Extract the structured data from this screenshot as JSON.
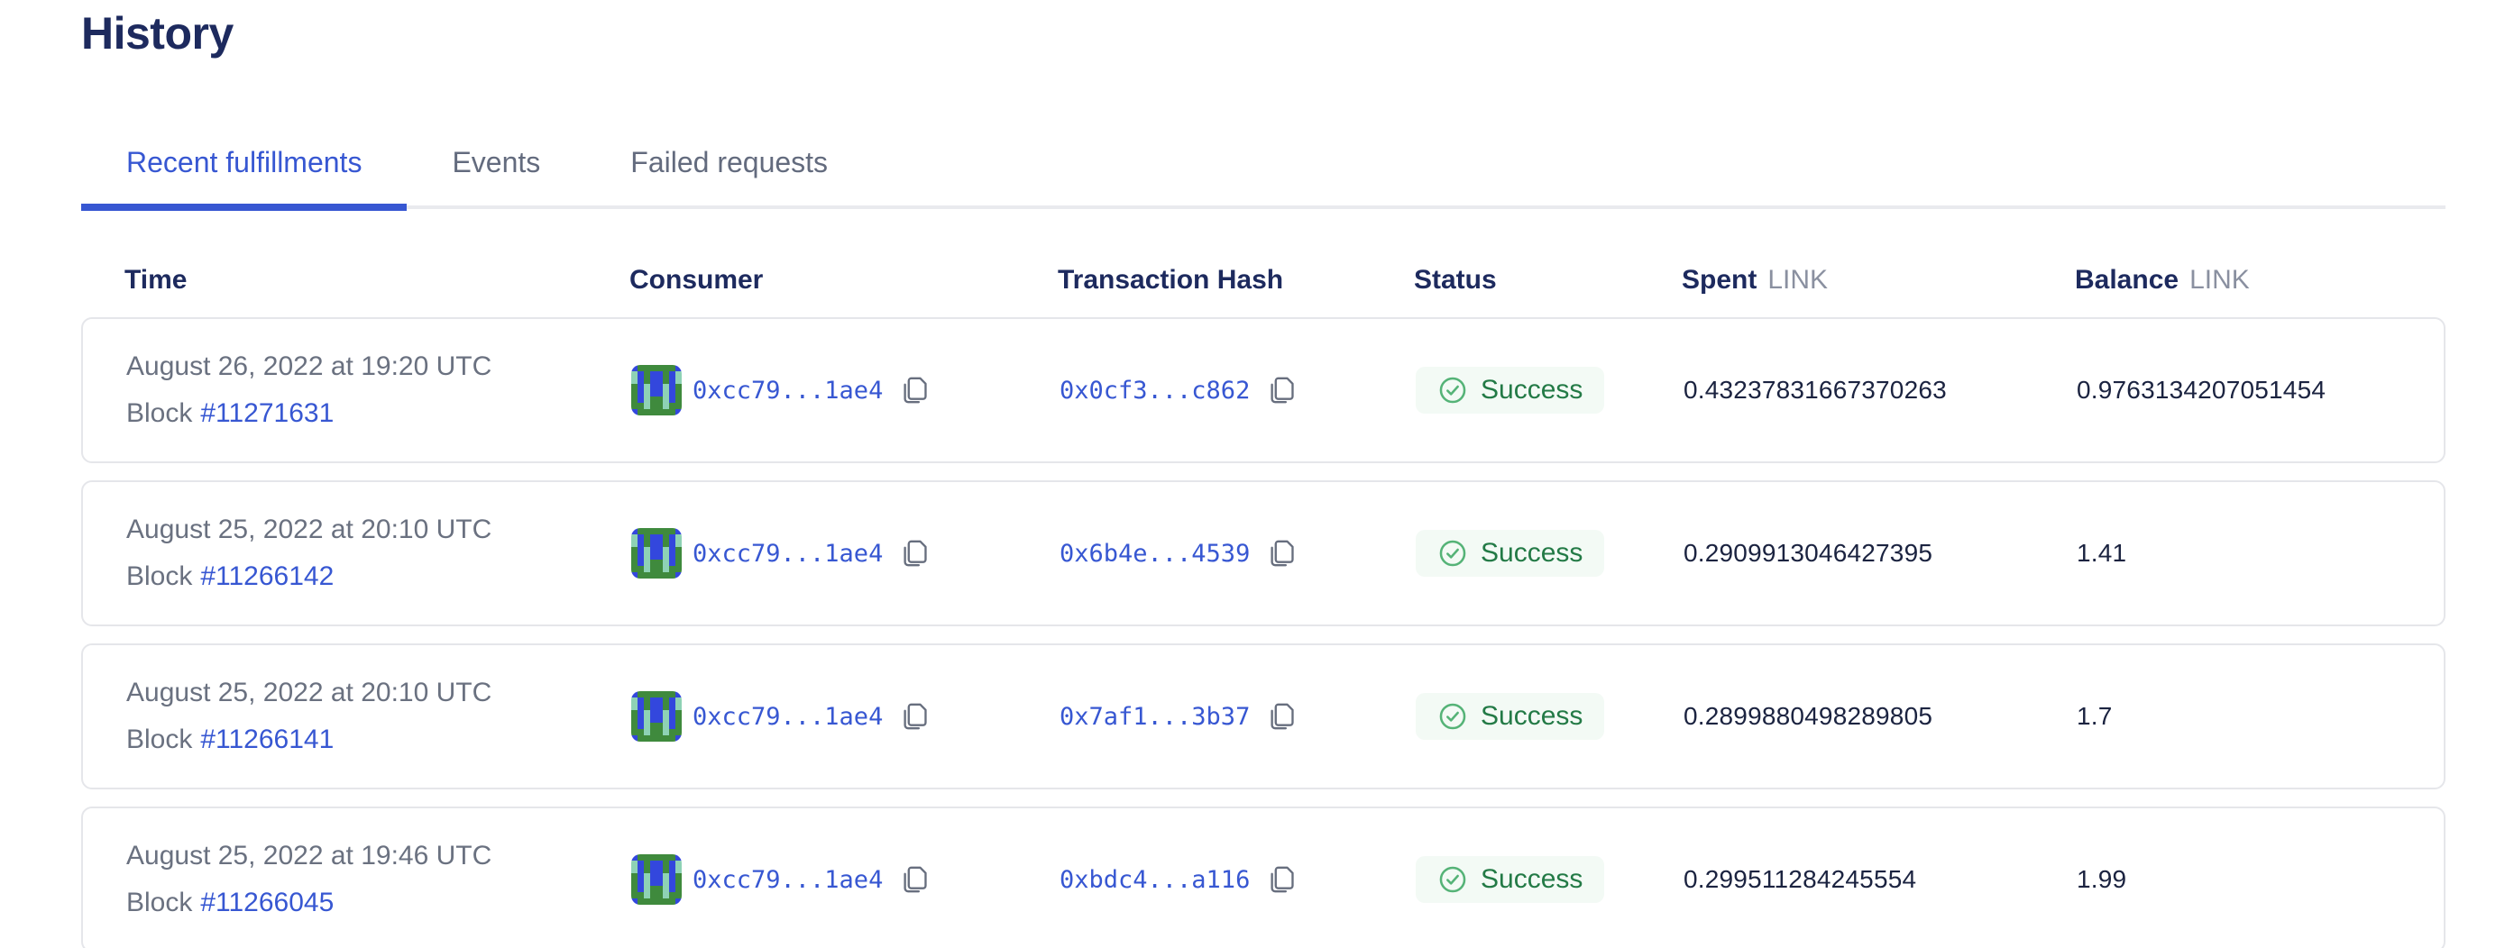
{
  "page": {
    "title": "History"
  },
  "tabs": [
    {
      "label": "Recent fulfillments",
      "active": true
    },
    {
      "label": "Events",
      "active": false
    },
    {
      "label": "Failed requests",
      "active": false
    }
  ],
  "labels": {
    "block": "Block"
  },
  "table": {
    "headers": {
      "time": "Time",
      "consumer": "Consumer",
      "tx": "Transaction Hash",
      "status": "Status",
      "spent": "Spent",
      "spent_unit": "LINK",
      "balance": "Balance",
      "balance_unit": "LINK"
    },
    "rows": [
      {
        "date": "August 26, 2022 at 19:20 UTC",
        "block": "#11271631",
        "consumer": "0xcc79...1ae4",
        "tx": "0x0cf3...c862",
        "status": "Success",
        "spent": "0.43237831667370263",
        "balance": "0.9763134207051454"
      },
      {
        "date": "August 25, 2022 at 20:10 UTC",
        "block": "#11266142",
        "consumer": "0xcc79...1ae4",
        "tx": "0x6b4e...4539",
        "status": "Success",
        "spent": "0.2909913046427395",
        "balance": "1.41"
      },
      {
        "date": "August 25, 2022 at 20:10 UTC",
        "block": "#11266141",
        "consumer": "0xcc79...1ae4",
        "tx": "0x7af1...3b37",
        "status": "Success",
        "spent": "0.2899880498289805",
        "balance": "1.7"
      },
      {
        "date": "August 25, 2022 at 19:46 UTC",
        "block": "#11266045",
        "consumer": "0xcc79...1ae4",
        "tx": "0xbdc4...a116",
        "status": "Success",
        "spent": "0.299511284245554",
        "balance": "1.99"
      }
    ]
  },
  "icons": {
    "copy": "copy-icon",
    "success_check": "check-circle-icon",
    "consumer_avatar": "blockie-avatar"
  },
  "colors": {
    "heading": "#1d2a5e",
    "link": "#3757d2",
    "tab_inactive": "#636b7e",
    "tab_line": "#e9eaee",
    "text_gray": "#6a7180",
    "unit_gray": "#8a90a0",
    "value_dark": "#1b2340",
    "border": "#e5e6ea",
    "success_text": "#237a46",
    "success_icon": "#55b377",
    "success_bg": "#f3faf5",
    "copy_gray": "#676e7e",
    "avatar_green": "#3f8a3d",
    "avatar_blue": "#3347dd",
    "avatar_teal": "#8ed2b5"
  },
  "avatar": {
    "pattern": [
      "BGGGGGGB",
      "TBGBBGBT",
      "TBGBBGBT",
      "GBTBBTBG",
      "GBTBBTBG",
      "GBTGGTBG",
      "GGTGGTGG",
      "BGGGGGGB"
    ]
  }
}
